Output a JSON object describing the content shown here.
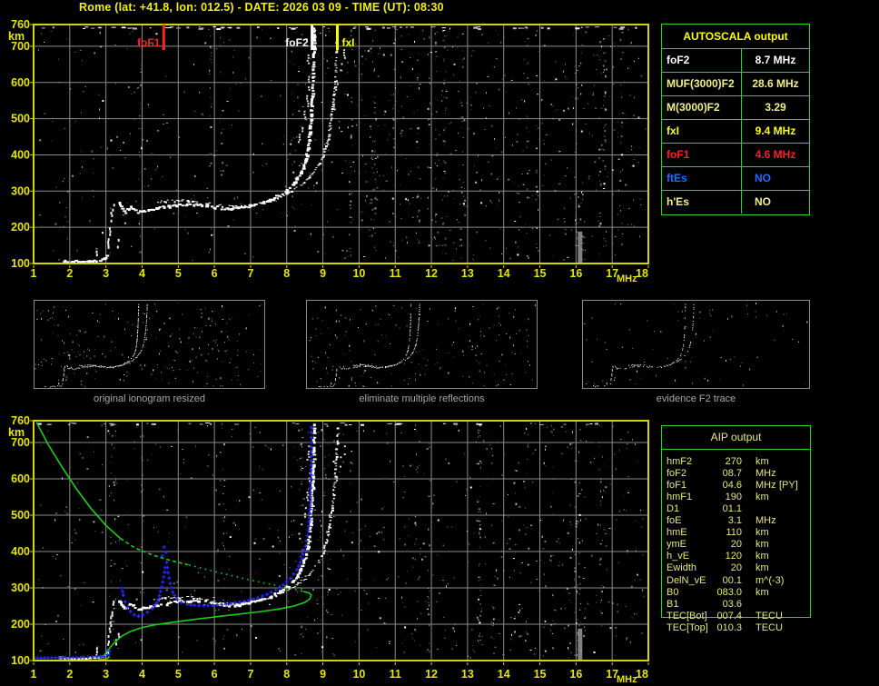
{
  "title": "Rome (lat: +41.8, lon: 012.5) - DATE: 2026 03 09 - TIME (UT): 08:30",
  "colors": {
    "background": "#000000",
    "title_yellow": "#f2f200",
    "frame_yellow": "#d4d400",
    "grid_gray": "#8c8c8c",
    "axis_label_yellow": "#e6e600",
    "trace_white": "#ffffff",
    "marker_red": "#ff2020",
    "marker_white": "#ffffff",
    "marker_yellow": "#ffff00",
    "table_green": "#2ed52e",
    "table_khaki": "#f0f08c",
    "table_blue": "#1f6fff",
    "profile_green": "#1ecc1e",
    "restored_blue": "#2828ff",
    "caption_gray": "#a8a8a8"
  },
  "top_plot": {
    "y_unit": "km",
    "x_unit": "MHz",
    "y_ticks": [
      760,
      700,
      600,
      500,
      400,
      300,
      200,
      100
    ],
    "x_ticks": [
      1,
      2,
      3,
      4,
      5,
      6,
      7,
      8,
      9,
      10,
      11,
      12,
      13,
      14,
      15,
      16,
      17,
      18
    ],
    "markers": [
      {
        "label": "foF1",
        "freq": 4.6,
        "color": "#ff2020",
        "side": "left"
      },
      {
        "label": "foF2",
        "freq": 8.7,
        "color": "#ffffff",
        "side": "left"
      },
      {
        "label": "fxI",
        "freq": 9.4,
        "color": "#ffff00",
        "side": "right"
      }
    ]
  },
  "bottom_plot": {
    "y_unit": "km",
    "x_unit": "MHz",
    "y_ticks": [
      760,
      700,
      600,
      500,
      400,
      300,
      200,
      100
    ],
    "x_ticks": [
      1,
      2,
      3,
      4,
      5,
      6,
      7,
      8,
      9,
      10,
      11,
      12,
      13,
      14,
      15,
      16,
      17,
      18
    ]
  },
  "autoscala_table": {
    "title": "AUTOSCALA output",
    "rows": [
      {
        "label": "foF2",
        "value": "8.7 MHz",
        "color": "#ffffff"
      },
      {
        "label": "MUF(3000)F2",
        "value": "28.6 MHz",
        "color": "#f0f08c"
      },
      {
        "label": "M(3000)F2",
        "value": "3.29",
        "color": "#f0f08c"
      },
      {
        "label": "fxI",
        "value": "9.4 MHz",
        "color": "#ffff00"
      },
      {
        "label": "foF1",
        "value": "4.6 MHz",
        "color": "#ff2020"
      },
      {
        "label": "ftEs",
        "value": "NO",
        "color": "#1f6fff"
      },
      {
        "label": "h'Es",
        "value": "NO",
        "color": "#f0f08c"
      }
    ]
  },
  "thumbnails": [
    {
      "caption": "original ionogram resized"
    },
    {
      "caption": "eliminate multiple reflections"
    },
    {
      "caption": "evidence F2 trace"
    }
  ],
  "aip_table": {
    "title": "AIP output",
    "rows": [
      {
        "label": "hmF2",
        "value": "270",
        "unit": "km",
        "note": ""
      },
      {
        "label": "foF2",
        "value": "08.7",
        "unit": "MHz",
        "note": ""
      },
      {
        "label": "foF1",
        "value": "04.6",
        "unit": "MHz",
        "note": "[PY]"
      },
      {
        "label": "hmF1",
        "value": "190",
        "unit": "km",
        "note": ""
      },
      {
        "label": "D1",
        "value": "01.1",
        "unit": "",
        "note": ""
      },
      {
        "label": "foE",
        "value": "3.1",
        "unit": "MHz",
        "note": ""
      },
      {
        "label": "hmE",
        "value": "110",
        "unit": "km",
        "note": ""
      },
      {
        "label": "ymE",
        "value": "20",
        "unit": "km",
        "note": ""
      },
      {
        "label": "h_vE",
        "value": "120",
        "unit": "km",
        "note": ""
      },
      {
        "label": "Ewidth",
        "value": "20",
        "unit": "km",
        "note": ""
      },
      {
        "label": "DelN_vE",
        "value": "00.1",
        "unit": "m^(-3)",
        "note": ""
      },
      {
        "label": "B0",
        "value": "083.0",
        "unit": "km",
        "note": ""
      },
      {
        "label": "B1",
        "value": "03.6",
        "unit": "",
        "note": ""
      },
      {
        "label": "TEC[Bot]",
        "value": "007.4",
        "unit": "TECU",
        "note": ""
      },
      {
        "label": "TEC[Top]",
        "value": "010.3",
        "unit": "TECU",
        "note": ""
      }
    ]
  },
  "chart_data": [
    {
      "type": "scatter",
      "title": "ionogram (echo power, white on black)",
      "xlabel": "MHz",
      "ylabel": "km",
      "xlim": [
        1,
        18
      ],
      "ylim": [
        100,
        760
      ],
      "grid": true,
      "markers": [
        {
          "name": "foF1",
          "x": 4.6,
          "value_mhz": 4.6
        },
        {
          "name": "foF2",
          "x": 8.7,
          "value_mhz": 8.7
        },
        {
          "name": "fxI",
          "x": 9.4,
          "value_mhz": 9.4
        }
      ],
      "series": [
        {
          "name": "E-layer echo trace",
          "points": [
            [
              1.7,
              110
            ],
            [
              1.95,
              108
            ],
            [
              2.2,
              108
            ],
            [
              2.45,
              109
            ],
            [
              2.65,
              110
            ],
            [
              2.8,
              111
            ],
            [
              2.92,
              115
            ],
            [
              3.0,
              124
            ],
            [
              3.06,
              136
            ]
          ]
        },
        {
          "name": "F-region o-mode echo trace",
          "points": [
            [
              3.35,
              268
            ],
            [
              3.42,
              252
            ],
            [
              3.5,
              243
            ],
            [
              3.58,
              250
            ],
            [
              3.66,
              259
            ],
            [
              3.74,
              251
            ],
            [
              3.85,
              244
            ],
            [
              4.0,
              246
            ],
            [
              4.2,
              250
            ],
            [
              4.5,
              257
            ],
            [
              4.8,
              262
            ],
            [
              5.1,
              265
            ],
            [
              5.4,
              266
            ],
            [
              5.7,
              263
            ],
            [
              6.0,
              257
            ],
            [
              6.3,
              253
            ],
            [
              6.6,
              255
            ],
            [
              6.9,
              260
            ],
            [
              7.2,
              267
            ],
            [
              7.5,
              277
            ],
            [
              7.8,
              292
            ],
            [
              8.05,
              310
            ],
            [
              8.25,
              333
            ],
            [
              8.4,
              360
            ],
            [
              8.5,
              392
            ],
            [
              8.58,
              435
            ],
            [
              8.63,
              490
            ],
            [
              8.67,
              555
            ],
            [
              8.7,
              630
            ],
            [
              8.72,
              710
            ],
            [
              8.73,
              758
            ]
          ]
        },
        {
          "name": "F-region x-mode echo trace",
          "points": [
            [
              4.3,
              269
            ],
            [
              4.7,
              274
            ],
            [
              5.1,
              276
            ],
            [
              5.5,
              273
            ],
            [
              5.9,
              266
            ],
            [
              6.2,
              260
            ],
            [
              6.5,
              258
            ],
            [
              6.8,
              260
            ],
            [
              7.1,
              265
            ],
            [
              7.4,
              272
            ],
            [
              7.7,
              282
            ],
            [
              8.0,
              295
            ],
            [
              8.3,
              313
            ],
            [
              8.6,
              338
            ],
            [
              8.85,
              370
            ],
            [
              9.0,
              402
            ],
            [
              9.12,
              445
            ],
            [
              9.2,
              495
            ],
            [
              9.27,
              555
            ],
            [
              9.32,
              620
            ],
            [
              9.36,
              690
            ],
            [
              9.38,
              758
            ]
          ]
        },
        {
          "name": "E-region vertical scatter (f, km_from, km_to)",
          "segments": [
            [
              3.05,
              148,
              170
            ],
            [
              3.1,
              183,
              208
            ],
            [
              3.14,
              221,
              243
            ],
            [
              3.19,
              251,
              265
            ],
            [
              2.72,
              118,
              136
            ],
            [
              3.28,
              149,
              159
            ],
            [
              3.33,
              168,
              176
            ]
          ]
        },
        {
          "name": "second-hop echoes (f, km_from, km_to)",
          "segments": [
            [
              8.32,
              438,
              458
            ],
            [
              8.4,
              468,
              486
            ],
            [
              8.48,
              498,
              522
            ],
            [
              8.55,
              537,
              565
            ],
            [
              8.6,
              582,
              618
            ],
            [
              8.57,
              648,
              692
            ],
            [
              9.02,
              398,
              418
            ],
            [
              9.1,
              432,
              456
            ],
            [
              9.18,
              468,
              498
            ],
            [
              9.28,
              528,
              562
            ],
            [
              9.36,
              582,
              606
            ],
            [
              9.48,
              636,
              662
            ],
            [
              9.58,
              670,
              692
            ]
          ]
        }
      ],
      "extras": {
        "interference_band_mhz": 16.1
      }
    },
    {
      "type": "line",
      "title": "ionogram with AIP inversion: electron-density profile (green) and restored trace (blue)",
      "xlabel": "MHz",
      "ylabel": "km",
      "xlim": [
        1,
        18
      ],
      "ylim": [
        100,
        760
      ],
      "grid": true,
      "series": [
        {
          "name": "profile topside (green solid)",
          "style": "solid",
          "points": [
            [
              1.08,
              756
            ],
            [
              1.4,
              695
            ],
            [
              1.8,
              630
            ],
            [
              2.2,
              570
            ],
            [
              2.6,
              517
            ],
            [
              3.0,
              472
            ],
            [
              3.4,
              436
            ]
          ]
        },
        {
          "name": "profile (green dashed)",
          "style": "dashed",
          "points": [
            [
              3.4,
              436
            ],
            [
              3.8,
              410
            ],
            [
              4.3,
              390
            ],
            [
              4.8,
              375
            ],
            [
              5.3,
              363
            ]
          ]
        },
        {
          "name": "profile (green dotted)",
          "style": "dotted",
          "points": [
            [
              5.3,
              363
            ],
            [
              5.8,
              350
            ],
            [
              6.3,
              338
            ],
            [
              6.8,
              326
            ],
            [
              7.3,
              315
            ],
            [
              7.8,
              305
            ],
            [
              8.2,
              296
            ],
            [
              8.45,
              290
            ]
          ]
        },
        {
          "name": "profile bottomside F2-F1-E (green solid)",
          "style": "solid",
          "points": [
            [
              8.45,
              290
            ],
            [
              8.6,
              287
            ],
            [
              8.68,
              281
            ],
            [
              8.64,
              270
            ],
            [
              8.5,
              260
            ],
            [
              8.2,
              250
            ],
            [
              7.8,
              242
            ],
            [
              7.3,
              235
            ],
            [
              6.7,
              228
            ],
            [
              6.1,
              221
            ],
            [
              5.5,
              214
            ],
            [
              4.9,
              206
            ],
            [
              4.4,
              199
            ],
            [
              4.0,
              191
            ],
            [
              3.7,
              181
            ],
            [
              3.45,
              168
            ],
            [
              3.28,
              154
            ],
            [
              3.15,
              140
            ],
            [
              3.05,
              127
            ],
            [
              2.96,
              116
            ],
            [
              2.88,
              109
            ],
            [
              2.82,
              105
            ],
            [
              2.92,
              103
            ],
            [
              3.05,
              106
            ],
            [
              3.1,
              112
            ]
          ]
        },
        {
          "name": "restored E trace (blue dots)",
          "points": [
            [
              1.02,
              107
            ],
            [
              1.3,
              107
            ],
            [
              1.6,
              108
            ],
            [
              1.9,
              108
            ],
            [
              2.2,
              108
            ],
            [
              2.5,
              109
            ],
            [
              2.75,
              110
            ],
            [
              2.95,
              111
            ],
            [
              3.05,
              116
            ],
            [
              3.1,
              126
            ],
            [
              3.14,
              138
            ]
          ]
        },
        {
          "name": "restored F trace (blue dots)",
          "points": [
            [
              3.44,
              300
            ],
            [
              3.48,
              280
            ],
            [
              3.53,
              262
            ],
            [
              3.6,
              247
            ],
            [
              3.68,
              235
            ],
            [
              3.78,
              226
            ],
            [
              3.9,
              222
            ],
            [
              4.02,
              226
            ],
            [
              4.15,
              233
            ],
            [
              4.28,
              243
            ],
            [
              4.4,
              258
            ],
            [
              4.48,
              278
            ],
            [
              4.54,
              302
            ],
            [
              4.6,
              330
            ],
            [
              4.64,
              356
            ],
            [
              4.68,
              370
            ],
            [
              4.72,
              342
            ],
            [
              4.78,
              312
            ],
            [
              4.85,
              288
            ],
            [
              4.95,
              270
            ],
            [
              5.08,
              260
            ],
            [
              5.25,
              254
            ],
            [
              5.45,
              252
            ],
            [
              5.7,
              251
            ],
            [
              5.95,
              252
            ],
            [
              6.2,
              254
            ],
            [
              6.45,
              257
            ],
            [
              6.7,
              261
            ],
            [
              6.95,
              266
            ],
            [
              7.2,
              273
            ],
            [
              7.45,
              282
            ],
            [
              7.7,
              294
            ],
            [
              7.9,
              308
            ],
            [
              8.1,
              326
            ],
            [
              8.28,
              350
            ],
            [
              8.42,
              380
            ],
            [
              8.52,
              415
            ],
            [
              8.6,
              458
            ],
            [
              8.64,
              505
            ],
            [
              8.66,
              550
            ],
            [
              8.67,
              600
            ],
            [
              8.675,
              650
            ],
            [
              8.68,
              700
            ],
            [
              8.685,
              755
            ]
          ]
        },
        {
          "name": "restored trace isolated points (blue)",
          "points": [
            [
              4.56,
              388
            ],
            [
              4.61,
              412
            ],
            [
              4.66,
              398
            ]
          ]
        }
      ],
      "extras": {
        "interference_band_mhz": 16.1
      }
    }
  ]
}
